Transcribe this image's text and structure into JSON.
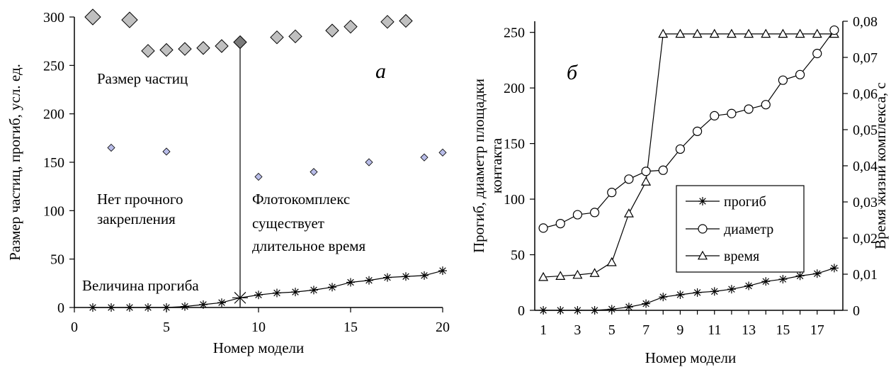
{
  "chart_data": [
    {
      "type": "scatter",
      "panel_letter": "а",
      "xlabel": "Номер модели",
      "ylabel": "Размер частиц, прогиб, усл. ед.",
      "xlim": [
        0,
        20
      ],
      "ylim": [
        0,
        300
      ],
      "x_ticks": [
        "0",
        "5",
        "10",
        "15",
        "20"
      ],
      "y_ticks": [
        "0",
        "50",
        "100",
        "150",
        "200",
        "250",
        "300"
      ],
      "grid": false,
      "divider_x": 9,
      "annotations": [
        "Размер частиц",
        "Нет прочного",
        "закрепления",
        "Флотокомплекс",
        "существует",
        "длительное время",
        "Величина прогиба"
      ],
      "series": [
        {
          "marker": "diamond-large",
          "color": "#c0c0c0",
          "x": [
            1,
            3,
            4,
            5,
            6,
            7,
            8,
            9,
            11,
            12,
            14,
            15,
            17,
            18
          ],
          "y": [
            300,
            297,
            265,
            266,
            267,
            268,
            270,
            274,
            279,
            280,
            286,
            290,
            295,
            296
          ]
        },
        {
          "marker": "diamond-small",
          "color": "#b8bce8",
          "x": [
            2,
            5,
            10,
            13,
            16,
            19,
            20
          ],
          "y": [
            165,
            161,
            135,
            140,
            150,
            155,
            160
          ]
        },
        {
          "marker": "star-line",
          "color": "#000000",
          "x": [
            1,
            2,
            3,
            4,
            5,
            6,
            7,
            8,
            9,
            10,
            11,
            12,
            13,
            14,
            15,
            16,
            17,
            18,
            19,
            20
          ],
          "y": [
            0,
            0,
            0,
            0,
            0,
            1,
            3,
            5,
            10,
            13,
            15,
            16,
            18,
            21,
            26,
            28,
            31,
            32,
            33,
            38
          ]
        }
      ]
    },
    {
      "type": "line",
      "panel_letter": "б",
      "xlabel": "Номер модели",
      "ylabel_lines": [
        "Прогиб, диаметр площадки",
        "контакта"
      ],
      "ylabel_right": "Время жизни комплекса, с",
      "xlim": [
        0.5,
        18.5
      ],
      "ylim": [
        0,
        260
      ],
      "ylim_right": [
        0,
        0.08
      ],
      "x_ticks": [
        "1",
        "3",
        "5",
        "7",
        "9",
        "11",
        "13",
        "15",
        "17"
      ],
      "y_ticks": [
        "0",
        "50",
        "100",
        "150",
        "200",
        "250"
      ],
      "y_ticks_right": [
        "0",
        "0,01",
        "0,02",
        "0,03",
        "0,04",
        "0,05",
        "0,06",
        "0,07",
        "0,08"
      ],
      "legend_position": "center-right",
      "series": [
        {
          "name": "прогиб",
          "marker": "star",
          "axis": "left",
          "x": [
            1,
            2,
            3,
            4,
            5,
            6,
            7,
            8,
            9,
            10,
            11,
            12,
            13,
            14,
            15,
            16,
            17,
            18
          ],
          "y": [
            0,
            0,
            0,
            0,
            1,
            3,
            6,
            12,
            14,
            16,
            17,
            19,
            22,
            26,
            28,
            31,
            33,
            38
          ]
        },
        {
          "name": "диаметр",
          "marker": "circle",
          "axis": "left",
          "x": [
            1,
            2,
            3,
            4,
            5,
            6,
            7,
            8,
            9,
            10,
            11,
            12,
            13,
            14,
            15,
            16,
            17,
            18
          ],
          "y": [
            74,
            78,
            86,
            88,
            106,
            118,
            125,
            126,
            145,
            161,
            175,
            177,
            181,
            185,
            207,
            212,
            231,
            252
          ]
        },
        {
          "name": "время",
          "marker": "triangle",
          "axis": "right",
          "x": [
            1,
            2,
            3,
            4,
            5,
            6,
            7,
            8,
            9,
            10,
            11,
            12,
            13,
            14,
            15,
            16,
            17,
            18
          ],
          "y": [
            0.0092,
            0.0095,
            0.0098,
            0.0103,
            0.0133,
            0.0268,
            0.0356,
            0.0765,
            0.0765,
            0.0765,
            0.0765,
            0.0765,
            0.0765,
            0.0765,
            0.0765,
            0.0765,
            0.0765,
            0.0765
          ]
        }
      ]
    }
  ]
}
